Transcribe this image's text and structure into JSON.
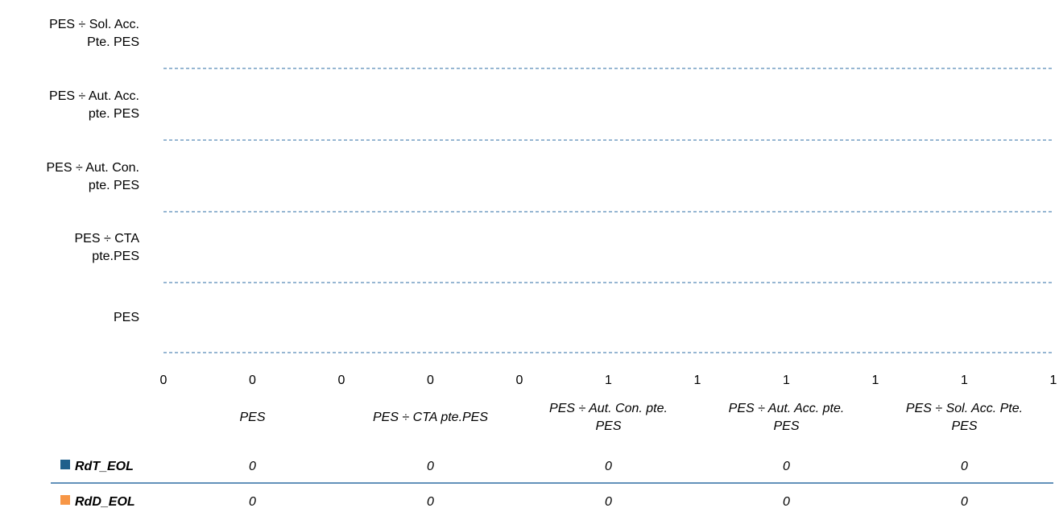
{
  "chart_data": {
    "type": "bar",
    "orientation": "horizontal",
    "categories": [
      "PES",
      "PES ÷ CTA pte.PES",
      "PES ÷ Aut. Con. pte. PES",
      "PES ÷ Aut. Acc. pte. PES",
      "PES ÷ Sol. Acc. Pte. PES"
    ],
    "y_labels_top_to_bottom": [
      [
        "PES ÷ Sol. Acc.",
        "Pte. PES"
      ],
      [
        "PES ÷ Aut. Acc.",
        "pte. PES"
      ],
      [
        "PES ÷ Aut. Con.",
        "pte. PES"
      ],
      [
        "PES ÷ CTA",
        "pte.PES"
      ],
      [
        "PES"
      ]
    ],
    "x_tick_labels": [
      "0",
      "0",
      "0",
      "0",
      "0",
      "1",
      "1",
      "1",
      "1",
      "1",
      "1"
    ],
    "xlim": [
      0,
      1
    ],
    "grid": true,
    "series": [
      {
        "name": "RdT_EOL",
        "color": "#1f5f8b",
        "values": [
          0,
          0,
          0,
          0,
          0
        ]
      },
      {
        "name": "RdD_EOL",
        "color": "#f79646",
        "values": [
          0,
          0,
          0,
          0,
          0
        ]
      }
    ],
    "data_table": {
      "headers": [
        [
          "PES"
        ],
        [
          "PES ÷ CTA pte.PES"
        ],
        [
          "PES ÷ Aut. Con. pte.",
          "PES"
        ],
        [
          "PES ÷ Aut. Acc. pte.",
          "PES"
        ],
        [
          "PES ÷ Sol. Acc. Pte.",
          "PES"
        ]
      ],
      "rows": [
        {
          "label": "RdT_EOL",
          "values": [
            "0",
            "0",
            "0",
            "0",
            "0"
          ]
        },
        {
          "label": "RdD_EOL",
          "values": [
            "0",
            "0",
            "0",
            "0",
            "0"
          ]
        }
      ]
    },
    "title": "",
    "xlabel": "",
    "ylabel": "",
    "legend": "bottom-left (in data table)"
  },
  "colors": {
    "gridline": "#2e6da4",
    "table_rule": "#2e6da4"
  }
}
